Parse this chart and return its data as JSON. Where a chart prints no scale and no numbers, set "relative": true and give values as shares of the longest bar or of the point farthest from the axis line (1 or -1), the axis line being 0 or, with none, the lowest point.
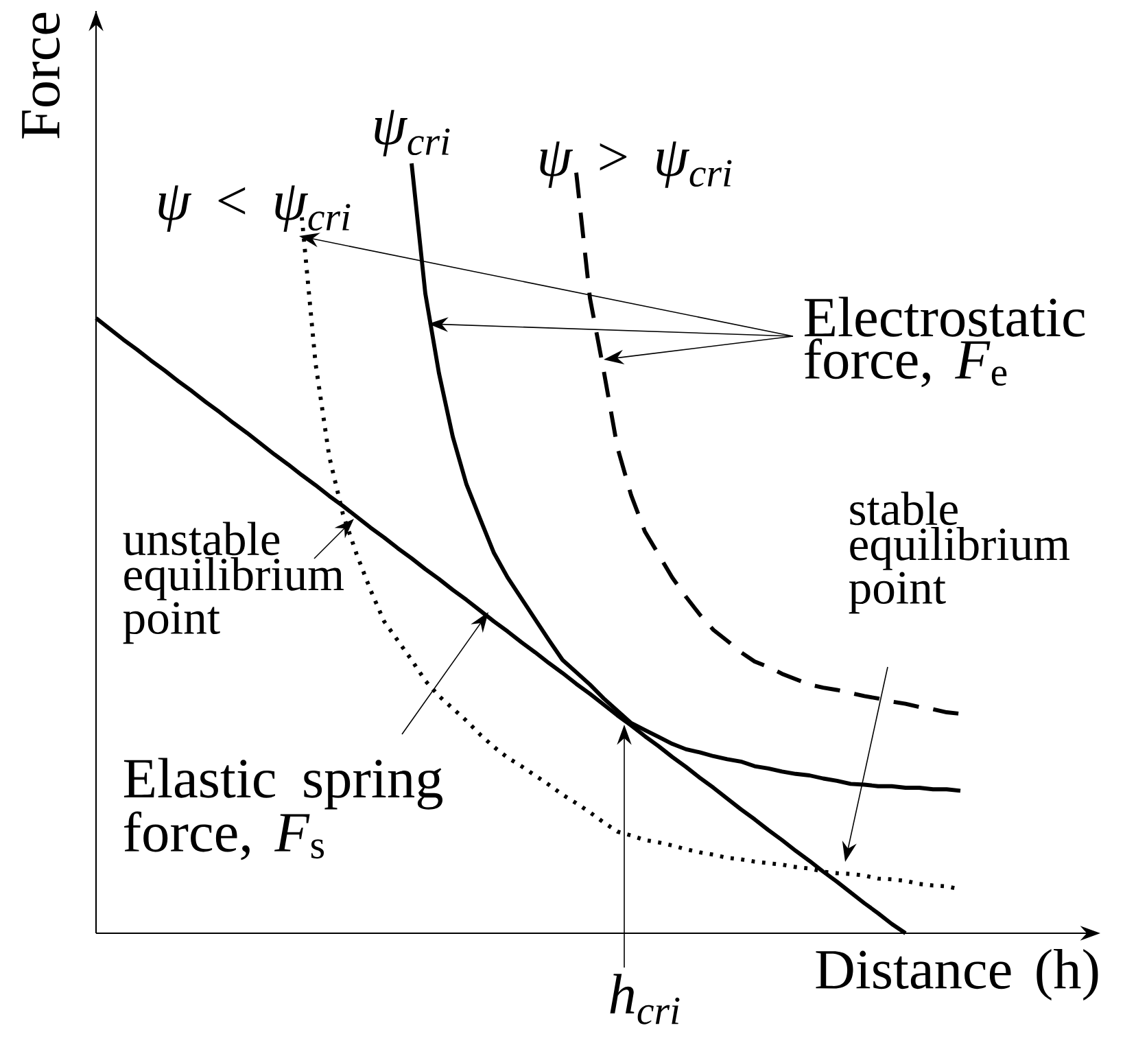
{
  "chart_data": {
    "type": "line",
    "relative": true,
    "xlabel": "Distance (h)",
    "ylabel": "Force",
    "categories": [
      null,
      null,
      null,
      null,
      null,
      null,
      null,
      null,
      null,
      null,
      null,
      null,
      null,
      null,
      null,
      null,
      null,
      null,
      null,
      null,
      null,
      null,
      null,
      null,
      null,
      null,
      null,
      null,
      null,
      null,
      null,
      null,
      null,
      null,
      null,
      null,
      null,
      null,
      null,
      null,
      null,
      null,
      null,
      null,
      null,
      null,
      null,
      null,
      null,
      null,
      null,
      null,
      null,
      null,
      null,
      null,
      null,
      null,
      null,
      null,
      null,
      null,
      null,
      null,
      null
    ],
    "series": [
      {
        "color": "#000000",
        "line_style": "solid",
        "values": [
          0.799,
          0.785,
          0.771,
          0.758,
          0.744,
          0.731,
          0.717,
          0.704,
          0.69,
          0.677,
          0.663,
          0.65,
          0.636,
          0.622,
          0.609,
          0.595,
          0.582,
          0.568,
          0.555,
          0.541,
          0.527,
          0.514,
          0.5,
          0.487,
          0.473,
          0.46,
          0.446,
          0.433,
          0.419,
          0.405,
          0.392,
          0.378,
          0.365,
          0.351,
          0.338,
          0.324,
          0.311,
          0.297,
          0.283,
          0.27,
          0.256,
          0.243,
          0.229,
          0.216,
          0.202,
          0.189,
          0.175,
          0.161,
          0.148,
          0.134,
          0.121,
          0.107,
          0.094,
          0.08,
          0.067,
          0.053,
          0.039,
          0.026,
          0.012,
          0.0,
          null,
          null,
          null,
          null,
          null
        ]
      },
      {
        "name": "ψ < ψ$_{cri}$",
        "color": "#000000",
        "line_style": "dotted",
        "values": [
          null,
          null,
          null,
          null,
          null,
          null,
          null,
          null,
          null,
          null,
          null,
          null,
          null,
          null,
          null,
          0.93,
          0.74,
          0.619,
          0.544,
          0.492,
          0.446,
          0.405,
          0.38,
          0.355,
          0.328,
          0.308,
          0.292,
          0.276,
          0.258,
          0.242,
          0.228,
          0.217,
          0.205,
          0.193,
          0.18,
          0.169,
          0.157,
          0.144,
          0.132,
          0.127,
          0.121,
          0.118,
          0.114,
          0.109,
          0.105,
          0.102,
          0.098,
          0.096,
          0.093,
          0.091,
          0.089,
          0.086,
          0.084,
          0.08,
          0.078,
          0.077,
          0.075,
          0.071,
          0.07,
          0.068,
          0.064,
          0.062,
          0.061,
          0.057,
          null
        ]
      },
      {
        "name": "ψ$_{cri}$",
        "color": "#000000",
        "line_style": "solid",
        "values": [
          null,
          null,
          null,
          null,
          null,
          null,
          null,
          null,
          null,
          null,
          null,
          null,
          null,
          null,
          null,
          null,
          null,
          null,
          null,
          null,
          null,
          null,
          null,
          1.0,
          0.831,
          0.727,
          0.645,
          0.583,
          0.538,
          0.494,
          0.462,
          0.435,
          0.408,
          0.381,
          0.355,
          0.339,
          0.323,
          0.305,
          0.289,
          0.273,
          0.264,
          0.255,
          0.246,
          0.239,
          0.235,
          0.23,
          0.226,
          0.223,
          0.217,
          0.214,
          0.21,
          0.207,
          0.205,
          0.201,
          0.198,
          0.194,
          0.193,
          0.191,
          0.191,
          0.189,
          0.189,
          0.187,
          0.187,
          0.185,
          null
        ]
      },
      {
        "name": "ψ > ψ$_{cri}$",
        "color": "#000000",
        "line_style": "dashed",
        "values": [
          null,
          null,
          null,
          null,
          null,
          null,
          null,
          null,
          null,
          null,
          null,
          null,
          null,
          null,
          null,
          null,
          null,
          null,
          null,
          null,
          null,
          null,
          null,
          null,
          null,
          null,
          null,
          null,
          null,
          null,
          null,
          null,
          null,
          null,
          null,
          0.988,
          0.825,
          0.731,
          0.631,
          0.569,
          0.522,
          0.492,
          0.462,
          0.437,
          0.414,
          0.394,
          0.38,
          0.365,
          0.353,
          0.346,
          0.337,
          0.33,
          0.323,
          0.319,
          0.316,
          0.312,
          0.308,
          0.305,
          0.301,
          0.298,
          0.294,
          0.291,
          0.287,
          0.285,
          null
        ]
      }
    ],
    "annotations": [
      "Electrostatic force, *F*$_{e}$",
      "unstable equilibrium point",
      "Elastic spring force, *F*$_{s}$",
      "stable equilibrium point",
      "*h*$_{cri}$"
    ]
  }
}
